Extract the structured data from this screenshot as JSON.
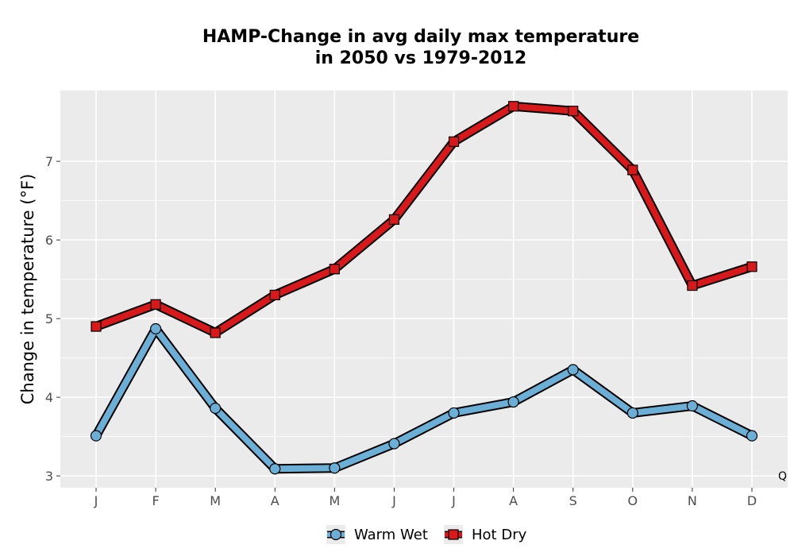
{
  "chart_data": {
    "type": "line",
    "title": [
      "HAMP-Change in avg daily max temperature",
      "in 2050 vs 1979-2012"
    ],
    "xlabel": "",
    "ylabel": "Change in temperature (°F)",
    "categories": [
      "J",
      "F",
      "M",
      "A",
      "M",
      "J",
      "J",
      "A",
      "S",
      "O",
      "N",
      "D"
    ],
    "ylim": [
      2.85,
      7.9
    ],
    "yticks": [
      3,
      4,
      5,
      6,
      7
    ],
    "grid": true,
    "legend_position": "bottom",
    "corner_mark": "Q",
    "series": [
      {
        "name": "Warm Wet",
        "marker": "circle",
        "color": "#6baed6",
        "values": [
          3.51,
          4.87,
          3.86,
          3.09,
          3.1,
          3.41,
          3.8,
          3.94,
          4.35,
          3.8,
          3.89,
          3.51
        ]
      },
      {
        "name": "Hot Dry",
        "marker": "square",
        "color": "#d7191c",
        "values": [
          4.9,
          5.18,
          4.82,
          5.3,
          5.63,
          6.26,
          7.25,
          7.7,
          7.64,
          6.89,
          5.42,
          5.66
        ]
      }
    ]
  }
}
